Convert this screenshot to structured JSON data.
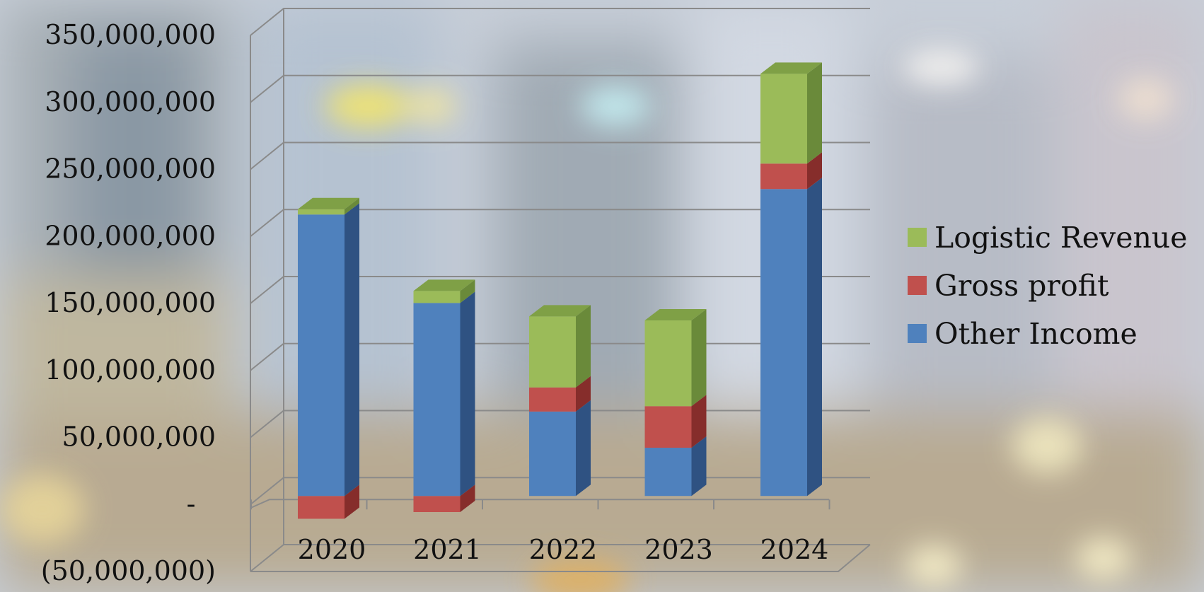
{
  "chart_data": {
    "type": "bar",
    "stacked": true,
    "three_d": true,
    "categories": [
      "2020",
      "2021",
      "2022",
      "2023",
      "2024"
    ],
    "series": [
      {
        "name": "Other Income",
        "color": "#4f81bd",
        "side_color": "#2f5282",
        "top_color": "#6b97cf",
        "values": [
          210000000,
          144000000,
          63000000,
          36000000,
          229000000
        ]
      },
      {
        "name": "Gross profit",
        "color": "#c0504d",
        "side_color": "#862d2b",
        "top_color": "#d36a67",
        "values": [
          -17000000,
          -12000000,
          18000000,
          31000000,
          19000000
        ]
      },
      {
        "name": "Logistic Revenue",
        "color": "#9bbb59",
        "side_color": "#6a8a3a",
        "top_color": "#7fa046",
        "values": [
          4000000,
          9000000,
          53000000,
          64000000,
          67000000
        ]
      }
    ],
    "y_ticks": [
      {
        "value": 350000000,
        "label": "350,000,000"
      },
      {
        "value": 300000000,
        "label": "300,000,000"
      },
      {
        "value": 250000000,
        "label": "250,000,000"
      },
      {
        "value": 200000000,
        "label": "200,000,000"
      },
      {
        "value": 150000000,
        "label": "150,000,000"
      },
      {
        "value": 100000000,
        "label": "100,000,000"
      },
      {
        "value": 50000000,
        "label": "50,000,000"
      },
      {
        "value": 0,
        "label": "-"
      },
      {
        "value": -50000000,
        "label": "(50,000,000)"
      }
    ],
    "ylim": [
      -50000000,
      350000000
    ],
    "grid": true,
    "legend_position": "right",
    "legend_order": [
      "Logistic Revenue",
      "Gross profit",
      "Other Income"
    ],
    "title": "",
    "xlabel": "",
    "ylabel": ""
  }
}
